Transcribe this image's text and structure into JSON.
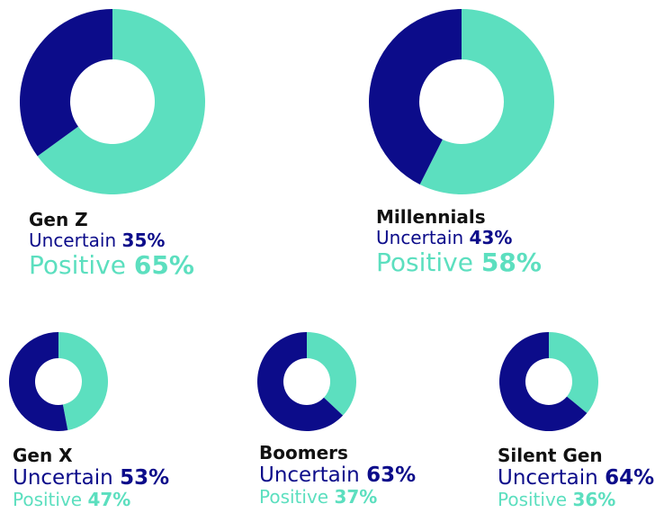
{
  "colors": {
    "uncertain": "#0c0c8a",
    "positive": "#5cdfbf",
    "hole": "#ffffff"
  },
  "chart_data": [
    {
      "type": "pie",
      "title": "Gen Z",
      "series": [
        {
          "name": "Uncertain",
          "label": "Uncertain",
          "value": 35,
          "value_text": "35%"
        },
        {
          "name": "Positive",
          "label": "Positive",
          "value": 65,
          "value_text": "65%"
        }
      ]
    },
    {
      "type": "pie",
      "title": "Millennials",
      "series": [
        {
          "name": "Uncertain",
          "label": "Uncertain",
          "value": 43,
          "value_text": "43%"
        },
        {
          "name": "Positive",
          "label": "Positive",
          "value": 58,
          "value_text": "58%"
        }
      ]
    },
    {
      "type": "pie",
      "title": "Gen X",
      "series": [
        {
          "name": "Uncertain",
          "label": "Uncertain",
          "value": 53,
          "value_text": "53%"
        },
        {
          "name": "Positive",
          "label": "Positive",
          "value": 47,
          "value_text": "47%"
        }
      ]
    },
    {
      "type": "pie",
      "title": "Boomers",
      "series": [
        {
          "name": "Uncertain",
          "label": "Uncertain",
          "value": 63,
          "value_text": "63%"
        },
        {
          "name": "Positive",
          "label": "Positive",
          "value": 37,
          "value_text": "37%"
        }
      ]
    },
    {
      "type": "pie",
      "title": "Silent Gen",
      "series": [
        {
          "name": "Uncertain",
          "label": "Uncertain",
          "value": 64,
          "value_text": "64%"
        },
        {
          "name": "Positive",
          "label": "Positive",
          "value": 36,
          "value_text": "36%"
        }
      ]
    }
  ]
}
